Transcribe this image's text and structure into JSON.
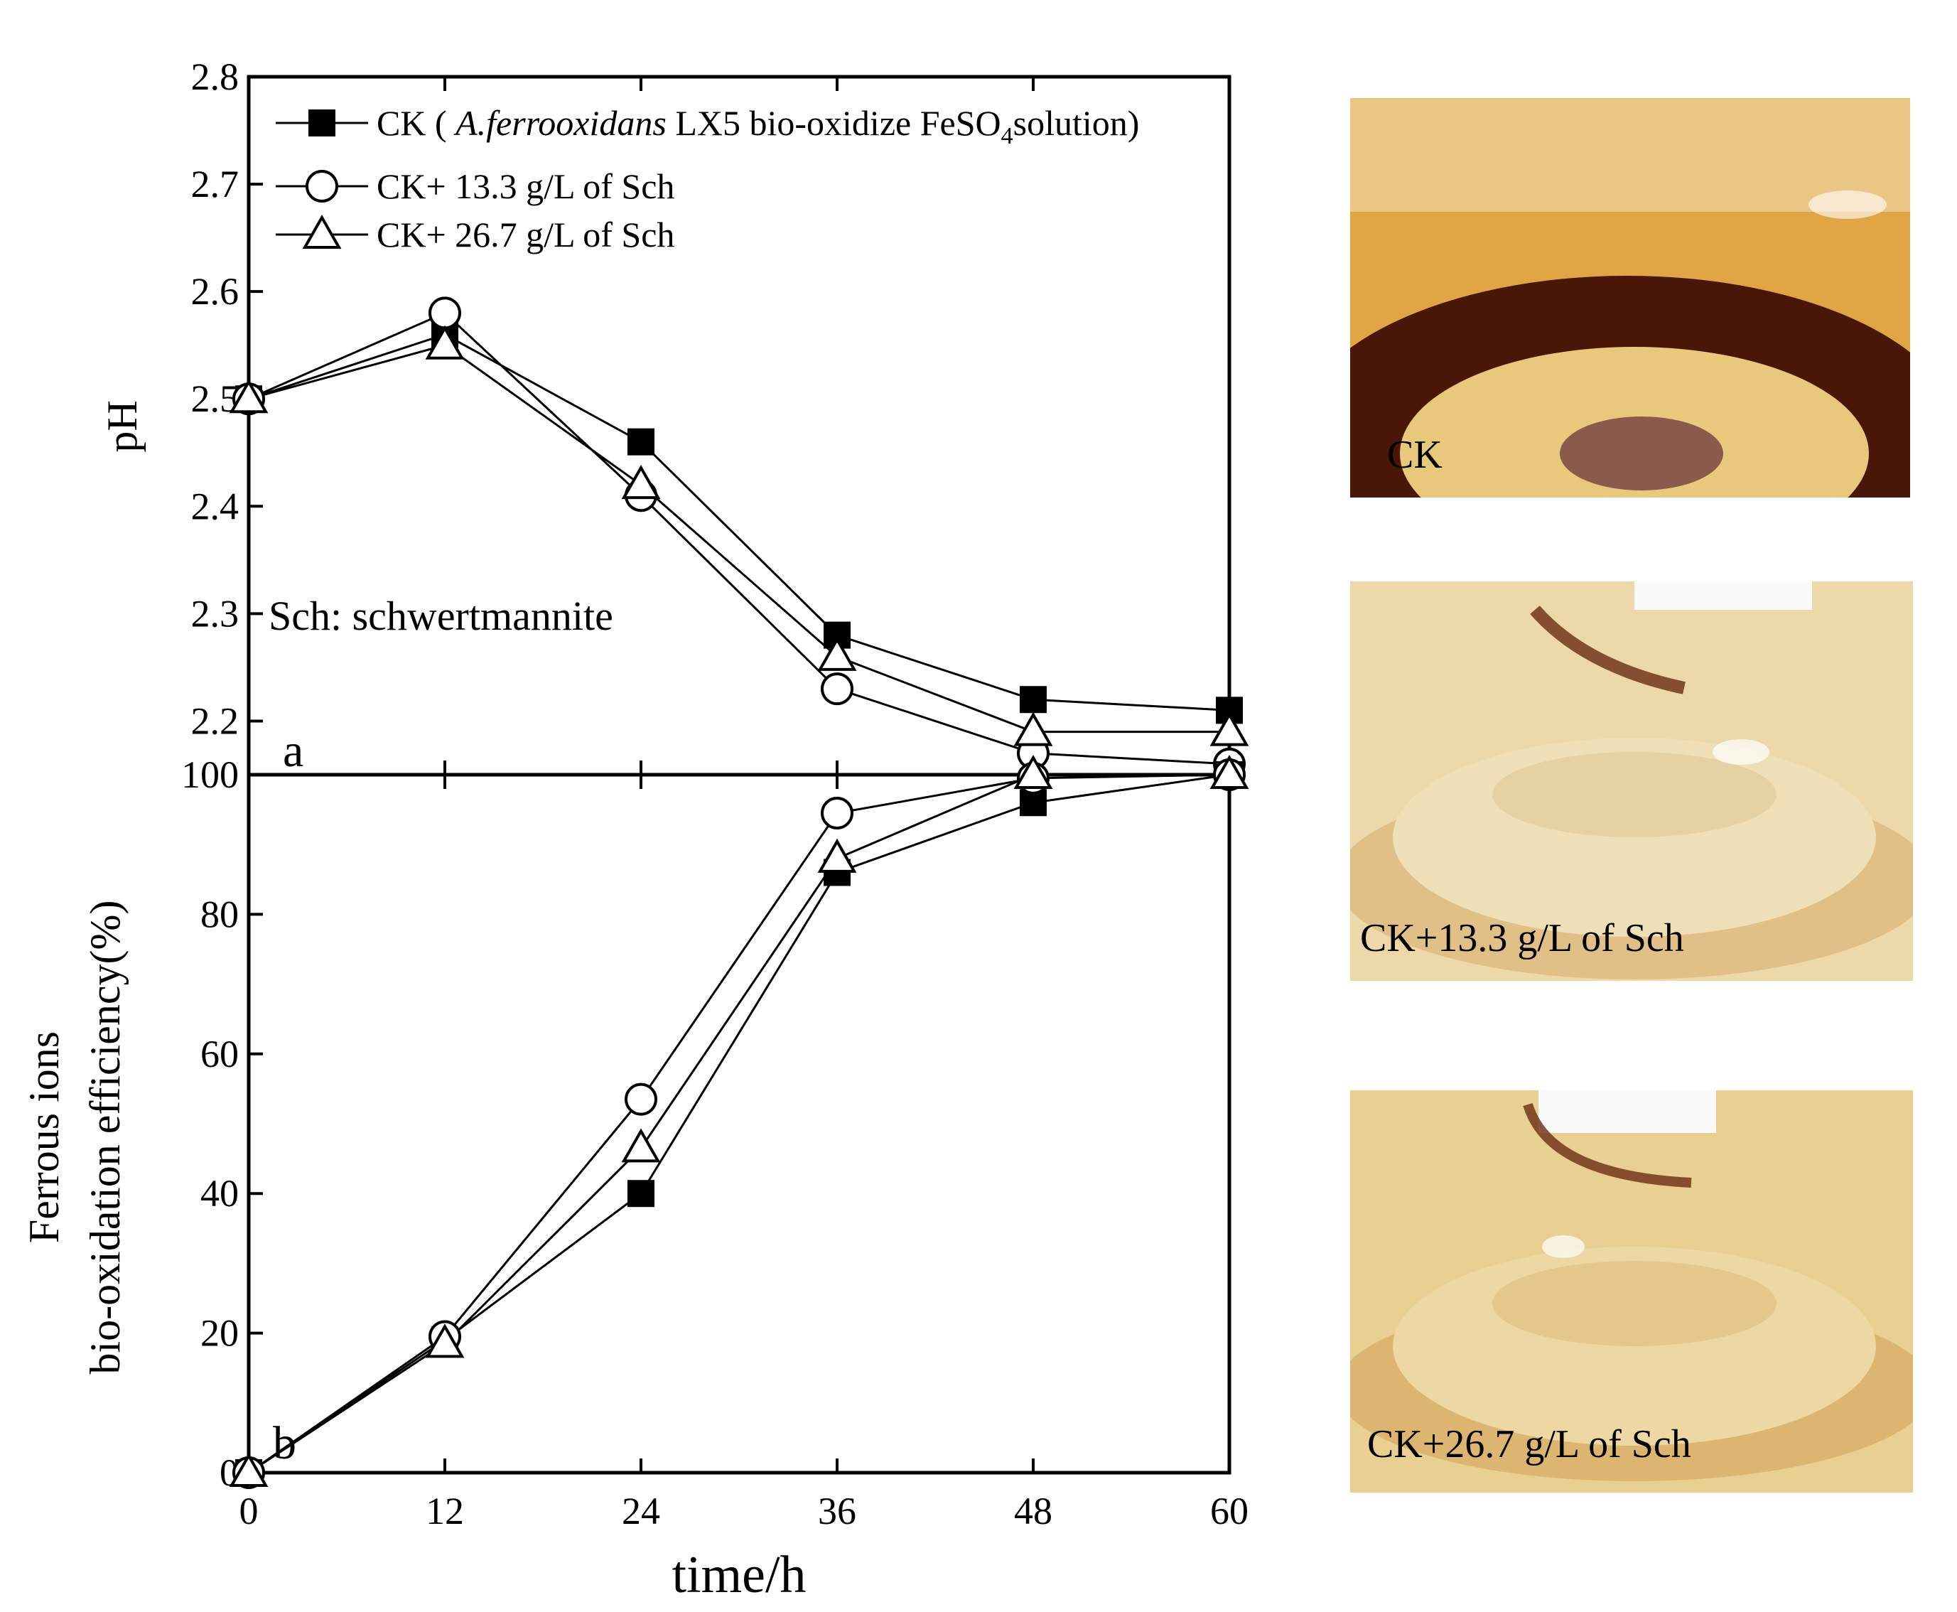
{
  "chart_data": [
    {
      "type": "line",
      "panel_label": "a",
      "ylabel": "pH",
      "xlabel": "",
      "x": [
        0,
        12,
        24,
        36,
        48,
        60
      ],
      "xlim": [
        0,
        60
      ],
      "ylim": [
        2.15,
        2.8
      ],
      "yticks": [
        2.2,
        2.3,
        2.4,
        2.5,
        2.6,
        2.7,
        2.8
      ],
      "ytick_labels": [
        "2.2",
        "2.3",
        "2.4",
        "2.5",
        "2.6",
        "2.7",
        "2.8"
      ],
      "series": [
        {
          "name": "CK",
          "marker": "filled-square",
          "values": [
            2.5,
            2.56,
            2.46,
            2.28,
            2.22,
            2.21
          ]
        },
        {
          "name": "CK+ 13.3 g/L of  Sch",
          "marker": "open-circle",
          "values": [
            2.5,
            2.58,
            2.41,
            2.23,
            2.17,
            2.16
          ]
        },
        {
          "name": "CK+ 26.7 g/L of  Sch",
          "marker": "open-triangle",
          "values": [
            2.5,
            2.55,
            2.42,
            2.26,
            2.19,
            2.19
          ]
        }
      ],
      "legend": {
        "position": "top-left",
        "entries": [
          {
            "prefix": "CK ( ",
            "italic": "A.ferrooxidans",
            "mid": " LX5 bio-oxidize FeSO",
            "sub": "4",
            "suffix": "solution)"
          },
          {
            "prefix": "CK+ 13.3 g/L of  Sch",
            "italic": "",
            "mid": "",
            "sub": "",
            "suffix": ""
          },
          {
            "prefix": "CK+ 26.7 g/L of  Sch",
            "italic": "",
            "mid": "",
            "sub": "",
            "suffix": ""
          }
        ]
      },
      "annotation": "Sch:  schwertmannite"
    },
    {
      "type": "line",
      "panel_label": "b",
      "ylabel_line1": "Ferrous ions",
      "ylabel_line2": "bio-oxidation efficiency(%)",
      "xlabel": "time/h",
      "x": [
        0,
        12,
        24,
        36,
        48,
        60
      ],
      "xticks": [
        0,
        12,
        24,
        36,
        48,
        60
      ],
      "xtick_labels": [
        "0",
        "12",
        "24",
        "36",
        "48",
        "60"
      ],
      "xlim": [
        0,
        60
      ],
      "ylim": [
        0,
        100
      ],
      "yticks": [
        0,
        20,
        40,
        60,
        80,
        100
      ],
      "ytick_labels": [
        "0",
        "20",
        "40",
        "60",
        "80",
        "100"
      ],
      "series": [
        {
          "name": "CK",
          "marker": "filled-square",
          "values": [
            0,
            19,
            40,
            86,
            96,
            100
          ]
        },
        {
          "name": "CK+ 13.3 g/L of  Sch",
          "marker": "open-circle",
          "values": [
            0,
            19.5,
            53.5,
            94.5,
            99.5,
            100
          ]
        },
        {
          "name": "CK+ 26.7 g/L of  Sch",
          "marker": "open-triangle",
          "values": [
            0,
            18.5,
            46.5,
            88,
            100,
            100
          ]
        }
      ]
    }
  ],
  "photos": [
    {
      "label": "CK",
      "glass": "#e0a545",
      "band": "#4a1608",
      "inner": "#e8c97c",
      "core": "#8a5a4c"
    },
    {
      "label": "CK+13.3 g/L of Sch",
      "glass": "#ecd8a8",
      "band": "#d9b070",
      "inner": "#efdfb6",
      "core": "#ddc391"
    },
    {
      "label": "CK+26.7 g/L of Sch",
      "glass": "#e9cf92",
      "band": "#d4a45c",
      "inner": "#edd8a4",
      "core": "#dcb878"
    }
  ]
}
